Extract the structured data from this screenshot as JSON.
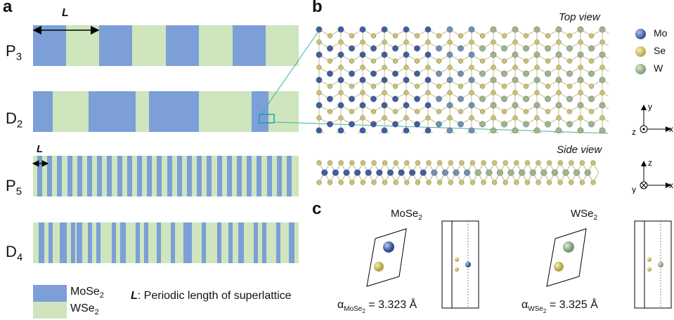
{
  "panel_a": {
    "letter": "a",
    "L_label": "L",
    "rows": [
      {
        "name": "P",
        "sub": "3"
      },
      {
        "name": "D",
        "sub": "2"
      },
      {
        "name": "P",
        "sub": "5"
      },
      {
        "name": "D",
        "sub": "4"
      }
    ],
    "legend": {
      "mose2": {
        "base": "MoSe",
        "sub": "2"
      },
      "wse2": {
        "base": "WSe",
        "sub": "2"
      },
      "l_note_bold": "L",
      "l_note_text": ": Periodic length of superlattice"
    },
    "colors": {
      "mose2": "#7b9fd6",
      "wse2": "#cfe5bd"
    }
  },
  "panel_b": {
    "letter": "b",
    "top_view": "Top view",
    "side_view": "Side view",
    "atoms_legend": [
      {
        "label": "Mo",
        "color": "#3d5fa0"
      },
      {
        "label": "Se",
        "color": "#cbc36a"
      },
      {
        "label": "W",
        "color": "#9bb58f"
      }
    ],
    "axes_top": {
      "up": "y",
      "right": "x",
      "out": "z"
    },
    "axes_side": {
      "up": "z",
      "right": "x",
      "in": "y"
    }
  },
  "panel_c": {
    "letter": "c",
    "mose2_title": {
      "base": "MoSe",
      "sub": "2"
    },
    "wse2_title": {
      "base": "WSe",
      "sub": "2"
    },
    "mose2_lattice": {
      "alpha": "α",
      "sub": "MoSe",
      "sub2": "2",
      "value": "= 3.323 Å"
    },
    "wse2_lattice": {
      "alpha": "α",
      "sub": "WSe",
      "sub2": "2",
      "value": "= 3.325 Å"
    }
  }
}
